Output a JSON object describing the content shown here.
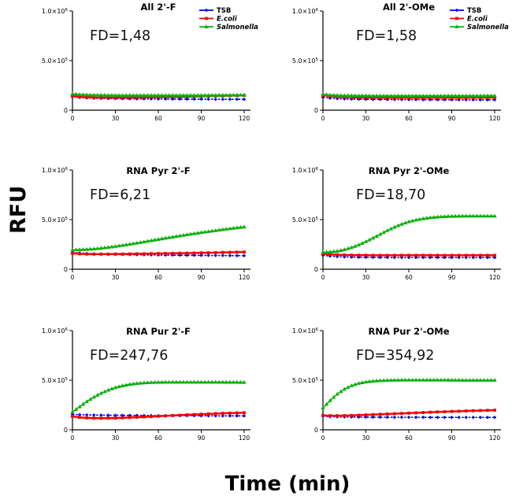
{
  "figure": {
    "ylabel": "RFU",
    "xlabel": "Time (min)"
  },
  "axes": {
    "x_ticks": [
      0,
      30,
      60,
      90,
      120
    ],
    "x_max": 120,
    "y_max_units_1e5": 10,
    "y_unit": "RFU, values stored in units of 1e5",
    "y_ticks": [
      {
        "v": 10,
        "base": "1.0×10",
        "exp": "6"
      },
      {
        "v": 5,
        "base": "5.0×10",
        "exp": "5"
      },
      {
        "v": 0,
        "base": "0",
        "exp": ""
      }
    ]
  },
  "legend": {
    "items": [
      {
        "label": "TSB",
        "color": "#0000ee",
        "marker": "diamond",
        "italic": false
      },
      {
        "label": "E.coli",
        "color": "#f40000",
        "marker": "square",
        "italic": true
      },
      {
        "label": "Salmonella",
        "color": "#0db00d",
        "marker": "triangle",
        "italic": true
      }
    ]
  },
  "chart_data": [
    {
      "type": "line",
      "title": "All 2'-F",
      "fd_label": "FD=1,48",
      "fd_value": 1.48,
      "show_legend": true,
      "xlabel": "Time (min)",
      "ylabel": "RFU",
      "ylim": [
        0,
        1000000
      ],
      "xlim": [
        0,
        120
      ],
      "x": [
        0,
        5,
        10,
        15,
        20,
        25,
        30,
        35,
        40,
        45,
        50,
        55,
        60,
        65,
        70,
        75,
        80,
        85,
        90,
        95,
        100,
        105,
        110,
        115,
        120
      ],
      "series": [
        {
          "name": "TSB",
          "values": [
            1.35,
            1.28,
            1.24,
            1.21,
            1.19,
            1.18,
            1.17,
            1.16,
            1.15,
            1.15,
            1.14,
            1.14,
            1.13,
            1.13,
            1.12,
            1.12,
            1.12,
            1.11,
            1.11,
            1.11,
            1.1,
            1.1,
            1.1,
            1.1,
            1.1
          ]
        },
        {
          "name": "E.coli",
          "values": [
            1.42,
            1.34,
            1.3,
            1.28,
            1.27,
            1.27,
            1.27,
            1.28,
            1.28,
            1.29,
            1.3,
            1.31,
            1.32,
            1.33,
            1.34,
            1.35,
            1.37,
            1.38,
            1.4,
            1.41,
            1.43,
            1.44,
            1.46,
            1.47,
            1.49
          ]
        },
        {
          "name": "Salmonella",
          "values": [
            1.65,
            1.58,
            1.55,
            1.53,
            1.52,
            1.51,
            1.5,
            1.5,
            1.5,
            1.5,
            1.5,
            1.5,
            1.5,
            1.5,
            1.5,
            1.5,
            1.5,
            1.5,
            1.5,
            1.51,
            1.51,
            1.52,
            1.52,
            1.53,
            1.53
          ]
        }
      ]
    },
    {
      "type": "line",
      "title": "All 2'-OMe",
      "fd_label": "FD=1,58",
      "fd_value": 1.58,
      "show_legend": true,
      "xlabel": "Time (min)",
      "ylabel": "RFU",
      "ylim": [
        0,
        1000000
      ],
      "xlim": [
        0,
        120
      ],
      "x": [
        0,
        5,
        10,
        15,
        20,
        25,
        30,
        35,
        40,
        45,
        50,
        55,
        60,
        65,
        70,
        75,
        80,
        85,
        90,
        95,
        100,
        105,
        110,
        115,
        120
      ],
      "series": [
        {
          "name": "TSB",
          "values": [
            1.3,
            1.22,
            1.17,
            1.14,
            1.12,
            1.11,
            1.1,
            1.09,
            1.09,
            1.08,
            1.08,
            1.07,
            1.07,
            1.07,
            1.06,
            1.06,
            1.06,
            1.06,
            1.05,
            1.05,
            1.05,
            1.05,
            1.05,
            1.05,
            1.05
          ]
        },
        {
          "name": "E.coli",
          "values": [
            1.5,
            1.4,
            1.35,
            1.32,
            1.3,
            1.29,
            1.28,
            1.28,
            1.27,
            1.27,
            1.27,
            1.27,
            1.27,
            1.27,
            1.27,
            1.27,
            1.27,
            1.27,
            1.27,
            1.27,
            1.27,
            1.28,
            1.28,
            1.28,
            1.28
          ]
        },
        {
          "name": "Salmonella",
          "values": [
            1.6,
            1.53,
            1.5,
            1.48,
            1.47,
            1.46,
            1.46,
            1.45,
            1.45,
            1.45,
            1.45,
            1.45,
            1.45,
            1.45,
            1.45,
            1.45,
            1.45,
            1.45,
            1.45,
            1.45,
            1.45,
            1.45,
            1.45,
            1.46,
            1.46
          ]
        }
      ]
    },
    {
      "type": "line",
      "title": "RNA Pyr 2'-F",
      "fd_label": "FD=6,21",
      "fd_value": 6.21,
      "show_legend": false,
      "xlabel": "Time (min)",
      "ylabel": "RFU",
      "ylim": [
        0,
        1000000
      ],
      "xlim": [
        0,
        120
      ],
      "x": [
        0,
        5,
        10,
        15,
        20,
        25,
        30,
        35,
        40,
        45,
        50,
        55,
        60,
        65,
        70,
        75,
        80,
        85,
        90,
        95,
        100,
        105,
        110,
        115,
        120
      ],
      "series": [
        {
          "name": "TSB",
          "values": [
            1.7,
            1.63,
            1.58,
            1.55,
            1.52,
            1.5,
            1.49,
            1.48,
            1.47,
            1.46,
            1.45,
            1.44,
            1.43,
            1.42,
            1.42,
            1.41,
            1.4,
            1.4,
            1.39,
            1.39,
            1.38,
            1.38,
            1.37,
            1.37,
            1.37
          ]
        },
        {
          "name": "E.coli",
          "values": [
            1.6,
            1.55,
            1.53,
            1.52,
            1.52,
            1.52,
            1.53,
            1.53,
            1.54,
            1.55,
            1.56,
            1.57,
            1.58,
            1.59,
            1.6,
            1.61,
            1.62,
            1.63,
            1.65,
            1.66,
            1.67,
            1.69,
            1.7,
            1.72,
            1.73
          ]
        },
        {
          "name": "Salmonella",
          "values": [
            1.95,
            1.97,
            2.0,
            2.05,
            2.12,
            2.2,
            2.3,
            2.41,
            2.52,
            2.64,
            2.76,
            2.89,
            3.01,
            3.13,
            3.25,
            3.37,
            3.48,
            3.59,
            3.7,
            3.8,
            3.9,
            4.0,
            4.09,
            4.18,
            4.26
          ]
        }
      ]
    },
    {
      "type": "line",
      "title": "RNA Pyr 2'-OMe",
      "fd_label": "FD=18,70",
      "fd_value": 18.7,
      "show_legend": false,
      "xlabel": "Time (min)",
      "ylabel": "RFU",
      "ylim": [
        0,
        1000000
      ],
      "xlim": [
        0,
        120
      ],
      "x": [
        0,
        5,
        10,
        15,
        20,
        25,
        30,
        35,
        40,
        45,
        50,
        55,
        60,
        65,
        70,
        75,
        80,
        85,
        90,
        95,
        100,
        105,
        110,
        115,
        120
      ],
      "series": [
        {
          "name": "TSB",
          "values": [
            1.4,
            1.32,
            1.27,
            1.24,
            1.22,
            1.21,
            1.2,
            1.2,
            1.19,
            1.19,
            1.18,
            1.18,
            1.18,
            1.18,
            1.18,
            1.18,
            1.18,
            1.18,
            1.18,
            1.18,
            1.18,
            1.18,
            1.18,
            1.18,
            1.18
          ]
        },
        {
          "name": "E.coli",
          "values": [
            1.55,
            1.48,
            1.45,
            1.43,
            1.42,
            1.41,
            1.41,
            1.4,
            1.4,
            1.4,
            1.4,
            1.4,
            1.4,
            1.4,
            1.4,
            1.4,
            1.4,
            1.4,
            1.4,
            1.4,
            1.4,
            1.4,
            1.4,
            1.4,
            1.4
          ]
        },
        {
          "name": "Salmonella",
          "values": [
            1.7,
            1.74,
            1.82,
            1.97,
            2.18,
            2.45,
            2.78,
            3.14,
            3.52,
            3.9,
            4.24,
            4.54,
            4.78,
            4.96,
            5.1,
            5.2,
            5.27,
            5.31,
            5.34,
            5.35,
            5.36,
            5.36,
            5.36,
            5.36,
            5.36
          ]
        }
      ]
    },
    {
      "type": "line",
      "title": "RNA Pur 2'-F",
      "fd_label": "FD=247,76",
      "fd_value": 247.76,
      "show_legend": false,
      "xlabel": "Time (min)",
      "ylabel": "RFU",
      "ylim": [
        0,
        1000000
      ],
      "xlim": [
        0,
        120
      ],
      "x": [
        0,
        5,
        10,
        15,
        20,
        25,
        30,
        35,
        40,
        45,
        50,
        55,
        60,
        65,
        70,
        75,
        80,
        85,
        90,
        95,
        100,
        105,
        110,
        115,
        120
      ],
      "series": [
        {
          "name": "TSB",
          "values": [
            1.55,
            1.52,
            1.5,
            1.49,
            1.48,
            1.47,
            1.46,
            1.46,
            1.45,
            1.45,
            1.44,
            1.44,
            1.43,
            1.43,
            1.43,
            1.42,
            1.42,
            1.42,
            1.41,
            1.41,
            1.41,
            1.4,
            1.4,
            1.4,
            1.4
          ]
        },
        {
          "name": "E.coli",
          "values": [
            1.35,
            1.25,
            1.2,
            1.18,
            1.17,
            1.18,
            1.19,
            1.21,
            1.24,
            1.27,
            1.3,
            1.33,
            1.37,
            1.4,
            1.44,
            1.47,
            1.51,
            1.54,
            1.57,
            1.6,
            1.63,
            1.66,
            1.68,
            1.7,
            1.72
          ]
        },
        {
          "name": "Salmonella",
          "values": [
            1.8,
            2.32,
            2.85,
            3.3,
            3.68,
            4.0,
            4.25,
            4.44,
            4.58,
            4.67,
            4.73,
            4.77,
            4.79,
            4.8,
            4.8,
            4.8,
            4.8,
            4.8,
            4.8,
            4.8,
            4.8,
            4.8,
            4.79,
            4.79,
            4.78
          ]
        }
      ]
    },
    {
      "type": "line",
      "title": "RNA Pur 2'-OMe",
      "fd_label": "FD=354,92",
      "fd_value": 354.92,
      "show_legend": false,
      "xlabel": "Time (min)",
      "ylabel": "RFU",
      "ylim": [
        0,
        1000000
      ],
      "xlim": [
        0,
        120
      ],
      "x": [
        0,
        5,
        10,
        15,
        20,
        25,
        30,
        35,
        40,
        45,
        50,
        55,
        60,
        65,
        70,
        75,
        80,
        85,
        90,
        95,
        100,
        105,
        110,
        115,
        120
      ],
      "series": [
        {
          "name": "TSB",
          "values": [
            1.38,
            1.33,
            1.31,
            1.3,
            1.29,
            1.28,
            1.28,
            1.27,
            1.27,
            1.27,
            1.26,
            1.26,
            1.26,
            1.26,
            1.26,
            1.25,
            1.25,
            1.25,
            1.25,
            1.25,
            1.25,
            1.25,
            1.25,
            1.25,
            1.25
          ]
        },
        {
          "name": "E.coli",
          "values": [
            1.45,
            1.42,
            1.42,
            1.43,
            1.45,
            1.47,
            1.5,
            1.53,
            1.56,
            1.59,
            1.62,
            1.65,
            1.68,
            1.71,
            1.74,
            1.77,
            1.8,
            1.82,
            1.85,
            1.87,
            1.9,
            1.92,
            1.94,
            1.96,
            1.98
          ]
        },
        {
          "name": "Salmonella",
          "values": [
            2.2,
            2.95,
            3.6,
            4.1,
            4.45,
            4.68,
            4.82,
            4.91,
            4.96,
            4.99,
            5.01,
            5.02,
            5.02,
            5.02,
            5.02,
            5.02,
            5.02,
            5.02,
            5.01,
            5.01,
            5.0,
            5.0,
            5.0,
            5.0,
            5.0
          ]
        }
      ]
    }
  ]
}
